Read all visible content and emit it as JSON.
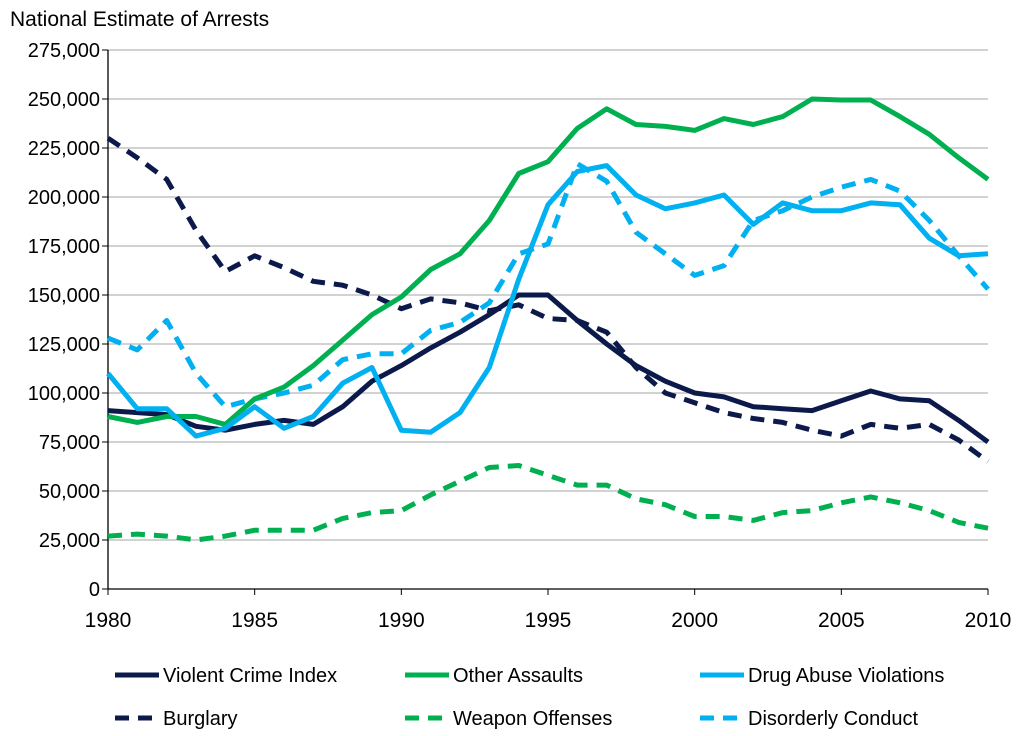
{
  "chart_data": {
    "type": "line",
    "title": "National Estimate of Arrests",
    "xlabel": "",
    "ylabel": "",
    "xlim": [
      1980,
      2010
    ],
    "ylim": [
      0,
      275000
    ],
    "x_ticks": [
      "1980",
      "1985",
      "1990",
      "1995",
      "2000",
      "2005",
      "2010"
    ],
    "y_ticks": [
      "0",
      "25,000",
      "50,000",
      "75,000",
      "100,000",
      "125,000",
      "150,000",
      "175,000",
      "200,000",
      "225,000",
      "250,000",
      "275,000"
    ],
    "grid": "horizontal",
    "legend_position": "bottom",
    "x": [
      1980,
      1981,
      1982,
      1983,
      1984,
      1985,
      1986,
      1987,
      1988,
      1989,
      1990,
      1991,
      1992,
      1993,
      1994,
      1995,
      1996,
      1997,
      1998,
      1999,
      2000,
      2001,
      2002,
      2003,
      2004,
      2005,
      2006,
      2007,
      2008,
      2009,
      2010
    ],
    "series": [
      {
        "name": "Violent Crime Index",
        "color": "#0c1a4b",
        "dash": false,
        "values": [
          91000,
          90000,
          89000,
          83000,
          81000,
          84000,
          86000,
          84000,
          93000,
          106000,
          114000,
          123000,
          131000,
          140000,
          150000,
          150000,
          137000,
          125000,
          114000,
          106000,
          100000,
          98000,
          93000,
          92000,
          91000,
          96000,
          101000,
          97000,
          96000,
          86000,
          75000
        ]
      },
      {
        "name": "Other Assaults",
        "color": "#00b050",
        "dash": false,
        "values": [
          88000,
          85000,
          88000,
          88000,
          84000,
          97000,
          103000,
          114000,
          127000,
          140000,
          149000,
          163000,
          171000,
          188000,
          212000,
          218000,
          235000,
          245000,
          237000,
          236000,
          234000,
          240000,
          237000,
          241000,
          250000,
          249500,
          249500,
          241000,
          232000,
          220000,
          209000
        ]
      },
      {
        "name": "Drug Abuse Violations",
        "color": "#00b0f0",
        "dash": false,
        "values": [
          110000,
          92000,
          92000,
          78000,
          82000,
          93000,
          82000,
          88000,
          105000,
          113000,
          81000,
          80000,
          90000,
          113000,
          158000,
          196000,
          213000,
          216000,
          201000,
          194000,
          197000,
          201000,
          186000,
          197000,
          193000,
          193000,
          197000,
          196000,
          179000,
          170000,
          171000
        ]
      },
      {
        "name": "Burglary",
        "color": "#0c1a4b",
        "dash": true,
        "values": [
          230000,
          220000,
          209000,
          183000,
          162000,
          170000,
          164000,
          157000,
          155000,
          150000,
          143000,
          148000,
          146000,
          142000,
          145000,
          138000,
          137000,
          131000,
          113000,
          100000,
          95000,
          90000,
          87000,
          85000,
          81000,
          78000,
          84000,
          82000,
          84000,
          76000,
          65000
        ]
      },
      {
        "name": "Weapon Offenses",
        "color": "#00b050",
        "dash": true,
        "values": [
          27000,
          28000,
          27000,
          25000,
          27000,
          30000,
          30000,
          30000,
          36000,
          39000,
          40000,
          48000,
          55000,
          62000,
          63000,
          58000,
          53000,
          53000,
          46000,
          43000,
          37000,
          37000,
          35000,
          39000,
          40000,
          44000,
          47000,
          44000,
          40000,
          34000,
          31000
        ]
      },
      {
        "name": "Disorderly Conduct",
        "color": "#00b0f0",
        "dash": true,
        "values": [
          128000,
          122000,
          137000,
          110000,
          93000,
          97000,
          100000,
          104000,
          117000,
          120000,
          120000,
          132000,
          136000,
          146000,
          171000,
          176000,
          217000,
          208000,
          182000,
          171000,
          160000,
          165000,
          188000,
          193000,
          200000,
          205000,
          209000,
          203000,
          188000,
          170000,
          153000
        ]
      }
    ]
  }
}
